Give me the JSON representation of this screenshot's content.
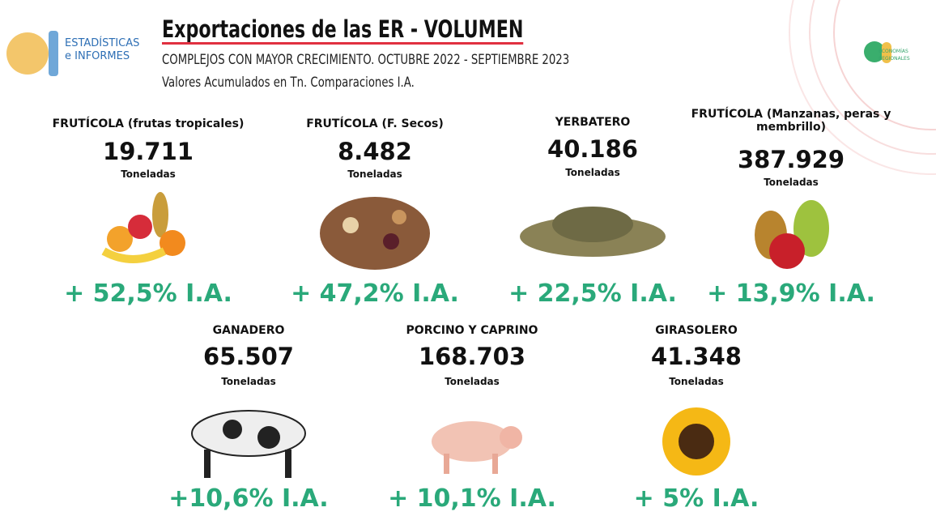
{
  "header": {
    "title": "Exportaciones de las ER - VOLUMEN",
    "subtitle": "COMPLEJOS CON MAYOR CRECIMIENTO. OCTUBRE 2022 - SEPTIEMBRE 2023",
    "note": "Valores Acumulados en Tn. Comparaciones I.A.",
    "logo_left": [
      "ESTADÍSTICAS",
      "e INFORMES"
    ],
    "logo_right": [
      "ECONOMÍAS",
      "REGIONALES"
    ]
  },
  "items": [
    {
      "name": "FRUTÍCOLA (frutas tropicales)",
      "value": "19.711",
      "unit": "Toneladas",
      "change": "+ 52,5% I.A."
    },
    {
      "name": "FRUTÍCOLA (F. Secos)",
      "value": "8.482",
      "unit": "Toneladas",
      "change": "+ 47,2% I.A."
    },
    {
      "name": "YERBATERO",
      "value": "40.186",
      "unit": "Toneladas",
      "change": "+ 22,5% I.A."
    },
    {
      "name": "FRUTÍCOLA (Manzanas, peras y membrillo)",
      "value": "387.929",
      "unit": "Toneladas",
      "change": "+ 13,9% I.A."
    },
    {
      "name": "GANADERO",
      "value": "65.507",
      "unit": "Toneladas",
      "change": "+10,6% I.A."
    },
    {
      "name": "PORCINO Y CAPRINO",
      "value": "168.703",
      "unit": "Toneladas",
      "change": "+ 10,1% I.A."
    },
    {
      "name": "GIRASOLERO",
      "value": "41.348",
      "unit": "Toneladas",
      "change": "+ 5% I.A."
    }
  ]
}
